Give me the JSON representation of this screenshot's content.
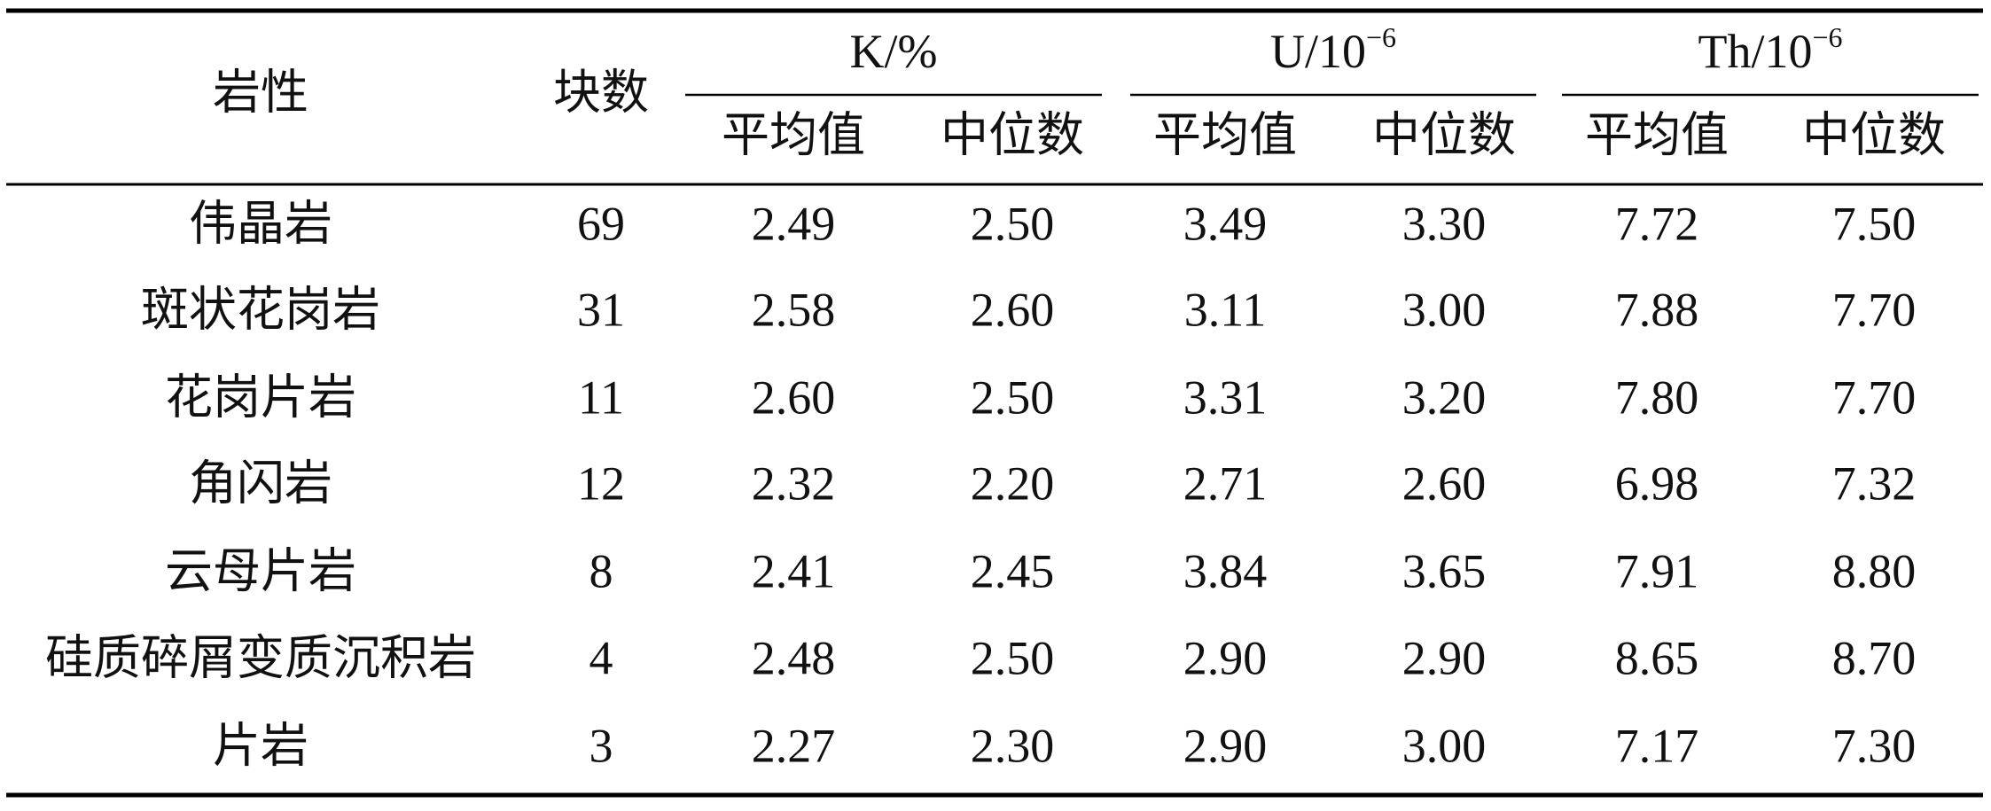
{
  "table": {
    "header": {
      "rock": "岩性",
      "count": "块数",
      "groups": [
        {
          "main": "K/%"
        },
        {
          "main": "U/10",
          "sup": "−6"
        },
        {
          "main": "Th/10",
          "sup": "−6"
        }
      ],
      "sub": [
        "平均值",
        "中位数",
        "平均值",
        "中位数",
        "平均值",
        "中位数"
      ]
    },
    "rows": [
      [
        "伟晶岩",
        "69",
        "2.49",
        "2.50",
        "3.49",
        "3.30",
        "7.72",
        "7.50"
      ],
      [
        "斑状花岗岩",
        "31",
        "2.58",
        "2.60",
        "3.11",
        "3.00",
        "7.88",
        "7.70"
      ],
      [
        "花岗片岩",
        "11",
        "2.60",
        "2.50",
        "3.31",
        "3.20",
        "7.80",
        "7.70"
      ],
      [
        "角闪岩",
        "12",
        "2.32",
        "2.20",
        "2.71",
        "2.60",
        "6.98",
        "7.32"
      ],
      [
        "云母片岩",
        "8",
        "2.41",
        "2.45",
        "3.84",
        "3.65",
        "7.91",
        "8.80"
      ],
      [
        "硅质碎屑变质沉积岩",
        "4",
        "2.48",
        "2.50",
        "2.90",
        "2.90",
        "8.65",
        "8.70"
      ],
      [
        "片岩",
        "3",
        "2.27",
        "2.30",
        "2.90",
        "3.00",
        "7.17",
        "7.30"
      ]
    ]
  }
}
